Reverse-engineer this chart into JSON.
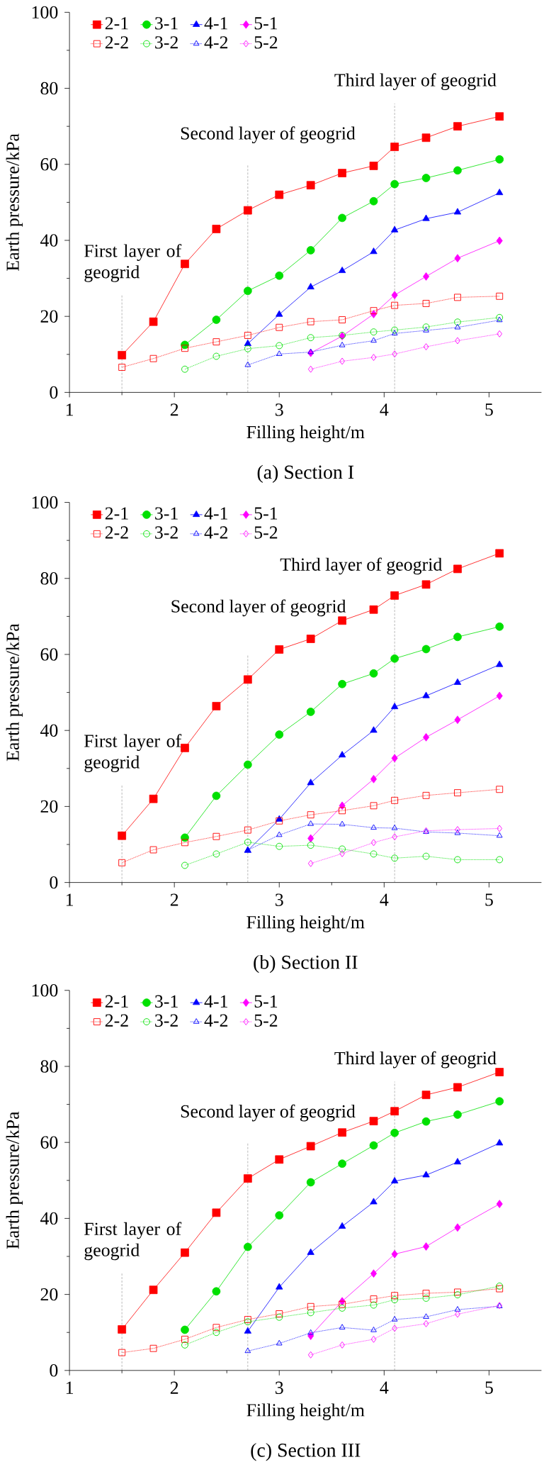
{
  "chart_data": [
    {
      "type": "line",
      "title": "(a) Section I",
      "xlabel": "Filling height/m",
      "ylabel": "Earth pressure/kPa",
      "xlim": [
        1,
        5.5
      ],
      "ylim": [
        0,
        100
      ],
      "xticks": [
        1,
        2,
        3,
        4,
        5
      ],
      "yticks": [
        0,
        20,
        40,
        60,
        80,
        100
      ],
      "legend": "top",
      "ref_lines": [
        {
          "axis": "x",
          "value": 1.5,
          "label": "First layer of geogrid"
        },
        {
          "axis": "x",
          "value": 2.7,
          "label": "Second layer of geogrid"
        },
        {
          "axis": "x",
          "value": 4.1,
          "label": "Third layer of geogrid"
        }
      ],
      "series": [
        {
          "name": "2-1",
          "color": "#ff0000",
          "marker": "square",
          "line_style": "solid",
          "x": [
            1.5,
            1.8,
            2.1,
            2.4,
            2.7,
            3.0,
            3.3,
            3.6,
            3.9,
            4.1,
            4.4,
            4.7,
            5.1
          ],
          "values": [
            9.8,
            18.6,
            33.8,
            43,
            47.9,
            52,
            54.5,
            57.7,
            59.6,
            64.6,
            67,
            70,
            72.6
          ]
        },
        {
          "name": "3-1",
          "color": "#00e000",
          "marker": "circle",
          "line_style": "solid",
          "x": [
            2.1,
            2.4,
            2.7,
            3.0,
            3.3,
            3.6,
            3.9,
            4.1,
            4.4,
            4.7,
            5.1
          ],
          "values": [
            12.5,
            19.1,
            26.7,
            30.7,
            37.4,
            45.9,
            50.3,
            54.8,
            56.4,
            58.4,
            61.3
          ]
        },
        {
          "name": "4-1",
          "color": "#0000ff",
          "marker": "triangle",
          "line_style": "solid",
          "x": [
            2.7,
            3.0,
            3.3,
            3.6,
            3.9,
            4.1,
            4.4,
            4.7,
            5.1
          ],
          "values": [
            12.8,
            20.5,
            27.7,
            32,
            37,
            42.7,
            45.7,
            47.4,
            52.5
          ]
        },
        {
          "name": "5-1",
          "color": "#ff00ff",
          "marker": "diamond",
          "line_style": "solid",
          "x": [
            3.3,
            3.6,
            3.9,
            4.1,
            4.4,
            4.7,
            5.1
          ],
          "values": [
            10.4,
            14.8,
            20.6,
            25.6,
            30.5,
            35.3,
            39.9
          ]
        },
        {
          "name": "2-2",
          "color": "#ff0000",
          "marker": "square",
          "line_style": "dotted",
          "x": [
            1.5,
            1.8,
            2.1,
            2.4,
            2.7,
            3.0,
            3.3,
            3.6,
            3.9,
            4.1,
            4.4,
            4.7,
            5.1
          ],
          "values": [
            6.6,
            8.9,
            11.6,
            13.3,
            15,
            17.1,
            18.6,
            19.1,
            21.5,
            22.9,
            23.4,
            25,
            25.3
          ]
        },
        {
          "name": "3-2",
          "color": "#00e000",
          "marker": "circle",
          "line_style": "dotted",
          "x": [
            2.1,
            2.4,
            2.7,
            3.0,
            3.3,
            3.6,
            3.9,
            4.1,
            4.4,
            4.7,
            5.1
          ],
          "values": [
            6.1,
            9.5,
            11.5,
            12.3,
            14.4,
            15,
            15.9,
            16.4,
            17.2,
            18.5,
            19.7
          ]
        },
        {
          "name": "4-2",
          "color": "#0000ff",
          "marker": "triangle",
          "line_style": "dotted",
          "x": [
            2.7,
            3.0,
            3.3,
            3.6,
            3.9,
            4.1,
            4.4,
            4.7,
            5.1
          ],
          "values": [
            7.2,
            10.1,
            10.6,
            12.4,
            13.6,
            15.5,
            16.3,
            17.1,
            19
          ]
        },
        {
          "name": "5-2",
          "color": "#ff00ff",
          "marker": "diamond",
          "line_style": "dotted",
          "x": [
            3.3,
            3.6,
            3.9,
            4.1,
            4.4,
            4.7,
            5.1
          ],
          "values": [
            6.1,
            8.2,
            9.2,
            10.1,
            12,
            13.6,
            15.4
          ]
        }
      ]
    },
    {
      "type": "line",
      "title": "(b) Section II",
      "xlabel": "Filling height/m",
      "ylabel": "Earth pressure/kPa",
      "xlim": [
        1,
        5.5
      ],
      "ylim": [
        0,
        100
      ],
      "xticks": [
        1,
        2,
        3,
        4,
        5
      ],
      "yticks": [
        0,
        20,
        40,
        60,
        80,
        100
      ],
      "legend": "top",
      "ref_lines": [
        {
          "axis": "x",
          "value": 1.5,
          "label": "First layer of geogrid"
        },
        {
          "axis": "x",
          "value": 2.7,
          "label": "Second layer of geogrid"
        },
        {
          "axis": "x",
          "value": 4.1,
          "label": "Third layer of geogrid"
        }
      ],
      "series": [
        {
          "name": "2-1",
          "color": "#ff0000",
          "marker": "square",
          "line_style": "solid",
          "x": [
            1.5,
            1.8,
            2.1,
            2.4,
            2.7,
            3.0,
            3.3,
            3.6,
            3.9,
            4.1,
            4.4,
            4.7,
            5.1
          ],
          "values": [
            12.3,
            22,
            35.4,
            46.4,
            53.4,
            61.3,
            64.1,
            68.9,
            71.8,
            75.5,
            78.4,
            82.5,
            86.6
          ]
        },
        {
          "name": "3-1",
          "color": "#00e000",
          "marker": "circle",
          "line_style": "solid",
          "x": [
            2.1,
            2.4,
            2.7,
            3.0,
            3.3,
            3.6,
            3.9,
            4.1,
            4.4,
            4.7,
            5.1
          ],
          "values": [
            11.8,
            22.8,
            31,
            38.9,
            44.9,
            52.2,
            55,
            58.9,
            61.4,
            64.6,
            67.3
          ]
        },
        {
          "name": "4-1",
          "color": "#0000ff",
          "marker": "triangle",
          "line_style": "solid",
          "x": [
            2.7,
            3.0,
            3.3,
            3.6,
            3.9,
            4.1,
            4.4,
            4.7,
            5.1
          ],
          "values": [
            8.4,
            16.6,
            26.2,
            33.5,
            40,
            46.2,
            49.1,
            52.6,
            57.3
          ]
        },
        {
          "name": "5-1",
          "color": "#ff00ff",
          "marker": "diamond",
          "line_style": "solid",
          "x": [
            3.3,
            3.6,
            3.9,
            4.1,
            4.4,
            4.7,
            5.1
          ],
          "values": [
            11.6,
            20.2,
            27.2,
            32.7,
            38.2,
            42.8,
            49.1
          ]
        },
        {
          "name": "2-2",
          "color": "#ff0000",
          "marker": "square",
          "line_style": "dotted",
          "x": [
            1.5,
            1.8,
            2.1,
            2.4,
            2.7,
            3.0,
            3.3,
            3.6,
            3.9,
            4.1,
            4.4,
            4.7,
            5.1
          ],
          "values": [
            5.2,
            8.6,
            10.5,
            12.1,
            13.8,
            16.2,
            17.8,
            18.9,
            20.2,
            21.6,
            22.9,
            23.6,
            24.5
          ]
        },
        {
          "name": "3-2",
          "color": "#00e000",
          "marker": "circle",
          "line_style": "dotted",
          "x": [
            2.1,
            2.4,
            2.7,
            3.0,
            3.3,
            3.6,
            3.9,
            4.1,
            4.4,
            4.7,
            5.1
          ],
          "values": [
            4.5,
            7.5,
            10.6,
            9.5,
            9.8,
            8.8,
            7.5,
            6.4,
            6.9,
            6,
            6
          ]
        },
        {
          "name": "4-2",
          "color": "#0000ff",
          "marker": "triangle",
          "line_style": "dotted",
          "x": [
            2.7,
            3.0,
            3.3,
            3.6,
            3.9,
            4.1,
            4.4,
            4.7,
            5.1
          ],
          "values": [
            8.5,
            12.5,
            15.4,
            15.3,
            14.4,
            14.3,
            13.3,
            13,
            12.3
          ]
        },
        {
          "name": "5-2",
          "color": "#ff00ff",
          "marker": "diamond",
          "line_style": "dotted",
          "x": [
            3.3,
            3.6,
            3.9,
            4.1,
            4.4,
            4.7,
            5.1
          ],
          "values": [
            5,
            7.6,
            10.5,
            12,
            13.6,
            13.9,
            14.2
          ]
        }
      ]
    },
    {
      "type": "line",
      "title": "(c) Section III",
      "xlabel": "Filling height/m",
      "ylabel": "Earth pressure/kPa",
      "xlim": [
        1,
        5.5
      ],
      "ylim": [
        0,
        100
      ],
      "xticks": [
        1,
        2,
        3,
        4,
        5
      ],
      "yticks": [
        0,
        20,
        40,
        60,
        80,
        100
      ],
      "legend": "top",
      "ref_lines": [
        {
          "axis": "x",
          "value": 1.5,
          "label": "First layer of geogrid"
        },
        {
          "axis": "x",
          "value": 2.7,
          "label": "Second layer of geogrid"
        },
        {
          "axis": "x",
          "value": 4.1,
          "label": "Third layer of geogrid"
        }
      ],
      "series": [
        {
          "name": "2-1",
          "color": "#ff0000",
          "marker": "square",
          "line_style": "solid",
          "x": [
            1.5,
            1.8,
            2.1,
            2.4,
            2.7,
            3.0,
            3.3,
            3.6,
            3.9,
            4.1,
            4.4,
            4.7,
            5.1
          ],
          "values": [
            10.8,
            21.2,
            31,
            41.5,
            50.5,
            55.5,
            59,
            62.6,
            65.6,
            68.2,
            72.5,
            74.5,
            78.5
          ]
        },
        {
          "name": "3-1",
          "color": "#00e000",
          "marker": "circle",
          "line_style": "solid",
          "x": [
            2.1,
            2.4,
            2.7,
            3.0,
            3.3,
            3.6,
            3.9,
            4.1,
            4.4,
            4.7,
            5.1
          ],
          "values": [
            10.7,
            20.8,
            32.5,
            40.8,
            49.5,
            54.4,
            59.2,
            62.5,
            65.5,
            67.3,
            70.8
          ]
        },
        {
          "name": "4-1",
          "color": "#0000ff",
          "marker": "triangle",
          "line_style": "solid",
          "x": [
            2.7,
            3.0,
            3.3,
            3.6,
            3.9,
            4.1,
            4.4,
            4.7,
            5.1
          ],
          "values": [
            10.3,
            21.9,
            31,
            37.9,
            44.3,
            49.8,
            51.4,
            54.8,
            59.8
          ]
        },
        {
          "name": "5-1",
          "color": "#ff00ff",
          "marker": "diamond",
          "line_style": "solid",
          "x": [
            3.3,
            3.6,
            3.9,
            4.1,
            4.4,
            4.7,
            5.1
          ],
          "values": [
            9.1,
            18.2,
            25.5,
            30.6,
            32.6,
            37.6,
            43.8
          ]
        },
        {
          "name": "2-2",
          "color": "#ff0000",
          "marker": "square",
          "line_style": "dotted",
          "x": [
            1.5,
            1.8,
            2.1,
            2.4,
            2.7,
            3.0,
            3.3,
            3.6,
            3.9,
            4.1,
            4.4,
            4.7,
            5.1
          ],
          "values": [
            4.7,
            5.8,
            8.2,
            11.3,
            13.4,
            14.9,
            16.8,
            17.4,
            18.8,
            19.7,
            20.3,
            20.6,
            21.5
          ]
        },
        {
          "name": "3-2",
          "color": "#00e000",
          "marker": "circle",
          "line_style": "dotted",
          "x": [
            2.1,
            2.4,
            2.7,
            3.0,
            3.3,
            3.6,
            3.9,
            4.1,
            4.4,
            4.7,
            5.1
          ],
          "values": [
            6.7,
            10,
            12.8,
            14,
            15.2,
            16.4,
            17.2,
            18.6,
            19,
            19.9,
            22.2
          ]
        },
        {
          "name": "4-2",
          "color": "#0000ff",
          "marker": "triangle",
          "line_style": "dotted",
          "x": [
            2.7,
            3.0,
            3.3,
            3.6,
            3.9,
            4.1,
            4.4,
            4.7,
            5.1
          ],
          "values": [
            5.1,
            7.1,
            9.9,
            11.3,
            10.6,
            13.4,
            14.1,
            16,
            16.9
          ]
        },
        {
          "name": "5-2",
          "color": "#ff00ff",
          "marker": "diamond",
          "line_style": "dotted",
          "x": [
            3.3,
            3.6,
            3.9,
            4.1,
            4.4,
            4.7,
            5.1
          ],
          "values": [
            4.1,
            6.7,
            8.2,
            11.1,
            12.3,
            14.8,
            17.1
          ]
        }
      ]
    }
  ]
}
